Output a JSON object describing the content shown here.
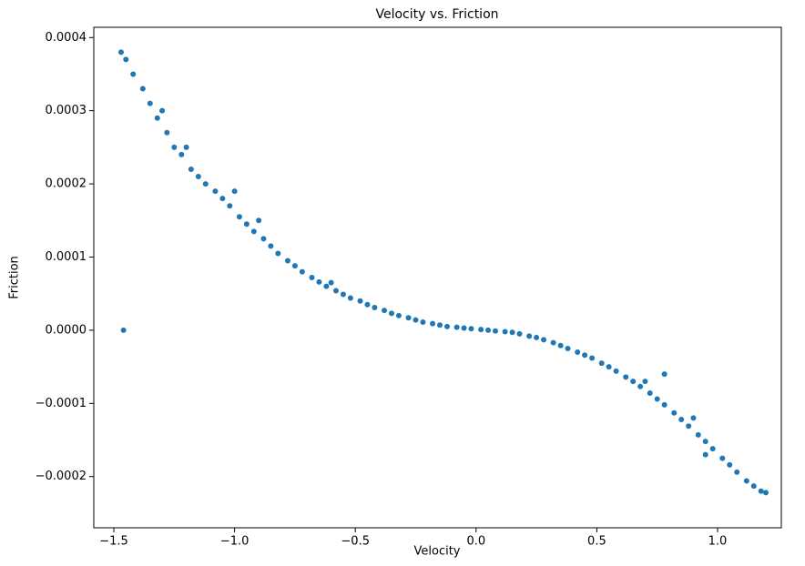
{
  "chart_data": {
    "type": "scatter",
    "title": "Velocity vs. Friction",
    "x_label": "Velocity",
    "y_label": "Friction",
    "color": "#1f77b4",
    "x": [
      -1.47,
      -1.45,
      -1.42,
      -1.38,
      -1.35,
      -1.32,
      -1.28,
      -1.25,
      -1.22,
      -1.18,
      -1.15,
      -1.12,
      -1.08,
      -1.05,
      -1.02,
      -0.98,
      -0.95,
      -0.92,
      -0.88,
      -0.85,
      -0.82,
      -0.78,
      -0.75,
      -0.72,
      -0.68,
      -0.65,
      -0.62,
      -0.58,
      -0.55,
      -0.52,
      -0.48,
      -0.45,
      -0.42,
      -0.38,
      -0.35,
      -0.32,
      -0.28,
      -0.25,
      -0.22,
      -0.18,
      -0.15,
      -0.12,
      -0.08,
      -0.05,
      -0.02,
      0.02,
      0.05,
      0.08,
      0.12,
      0.15,
      0.18,
      0.22,
      0.25,
      0.28,
      0.32,
      0.35,
      0.38,
      0.42,
      0.45,
      0.48,
      0.52,
      0.55,
      0.58,
      0.62,
      0.65,
      0.68,
      0.72,
      0.75,
      0.78,
      0.82,
      0.85,
      0.88,
      0.92,
      0.95,
      0.98,
      1.02,
      1.05,
      1.08,
      1.12,
      1.15,
      1.18,
      1.2,
      -1.46,
      -1.3,
      -1.2,
      -1.0,
      -0.9,
      -0.6,
      0.7,
      0.9,
      0.95,
      0.78
    ],
    "values": [
      0.00038,
      0.00037,
      0.00035,
      0.00033,
      0.00031,
      0.00029,
      0.00027,
      0.00025,
      0.00024,
      0.00022,
      0.00021,
      0.0002,
      0.00019,
      0.00018,
      0.00017,
      0.000155,
      0.000145,
      0.000135,
      0.000125,
      0.000115,
      0.000105,
      9.5e-05,
      8.8e-05,
      8e-05,
      7.2e-05,
      6.6e-05,
      6e-05,
      5.4e-05,
      4.9e-05,
      4.4e-05,
      4e-05,
      3.5e-05,
      3.1e-05,
      2.7e-05,
      2.3e-05,
      2e-05,
      1.7e-05,
      1.4e-05,
      1.1e-05,
      9e-06,
      7e-06,
      5e-06,
      4e-06,
      3e-06,
      2e-06,
      1e-06,
      0,
      -1e-06,
      -2e-06,
      -3e-06,
      -5e-06,
      -8e-06,
      -1e-05,
      -1.3e-05,
      -1.7e-05,
      -2.1e-05,
      -2.5e-05,
      -3e-05,
      -3.4e-05,
      -3.8e-05,
      -4.5e-05,
      -5e-05,
      -5.6e-05,
      -6.4e-05,
      -7e-05,
      -7.7e-05,
      -8.6e-05,
      -9.4e-05,
      -0.000102,
      -0.000113,
      -0.000122,
      -0.000131,
      -0.000143,
      -0.000152,
      -0.000162,
      -0.000175,
      -0.000184,
      -0.000194,
      -0.000206,
      -0.000213,
      -0.00022,
      -0.000222,
      0,
      0.0003,
      0.00025,
      0.00019,
      0.00015,
      6.5e-05,
      -7e-05,
      -0.00012,
      -0.00017,
      -6e-05
    ],
    "xlim": [
      -1.583,
      1.264
    ],
    "ylim": [
      -0.00027,
      0.000414
    ],
    "xticks": [
      {
        "value": -1.5,
        "label": "−1.5"
      },
      {
        "value": -1.0,
        "label": "−1.0"
      },
      {
        "value": -0.5,
        "label": "−0.5"
      },
      {
        "value": 0,
        "label": "0.0"
      },
      {
        "value": 0.5,
        "label": "0.5"
      },
      {
        "value": 1.0,
        "label": "1.0"
      }
    ],
    "yticks": [
      {
        "value": -0.0002,
        "label": "−0.0002"
      },
      {
        "value": -0.0001,
        "label": "−0.0001"
      },
      {
        "value": 0,
        "label": "0.0000"
      },
      {
        "value": 0.0001,
        "label": "0.0001"
      },
      {
        "value": 0.0002,
        "label": "0.0002"
      },
      {
        "value": 0.0003,
        "label": "0.0003"
      },
      {
        "value": 0.0004,
        "label": "0.0004"
      }
    ]
  }
}
